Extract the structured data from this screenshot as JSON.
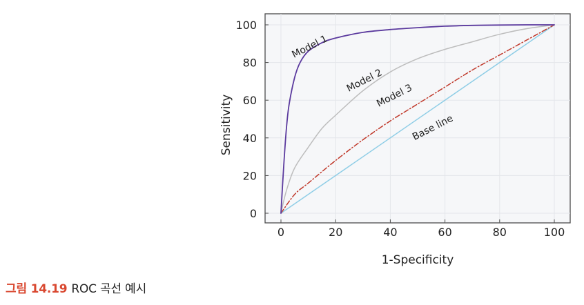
{
  "caption": {
    "figure_number": "그림 14.19",
    "text": "ROC 곡선 예시"
  },
  "chart_data": {
    "type": "line",
    "title": "",
    "xlabel": "1-Specificity",
    "ylabel": "Sensitivity",
    "xlim": [
      0,
      100
    ],
    "ylim": [
      0,
      100
    ],
    "x_ticks": [
      0,
      20,
      40,
      60,
      80,
      100
    ],
    "y_ticks": [
      0,
      20,
      40,
      60,
      80,
      100
    ],
    "grid": true,
    "series": [
      {
        "name": "Model 1",
        "color": "#5b3a9e",
        "style": "solid",
        "x": [
          0,
          1,
          2,
          3,
          5,
          7,
          10,
          15,
          20,
          30,
          40,
          50,
          60,
          70,
          80,
          90,
          100
        ],
        "y": [
          0,
          25,
          45,
          58,
          72,
          80,
          86,
          90.5,
          93,
          96,
          97.5,
          98.5,
          99.3,
          99.7,
          99.9,
          100,
          100
        ]
      },
      {
        "name": "Model 2",
        "color": "#bdbdbd",
        "style": "solid",
        "x": [
          0,
          2,
          5,
          10,
          15,
          20,
          30,
          40,
          50,
          60,
          70,
          80,
          90,
          100
        ],
        "y": [
          0,
          12,
          24,
          35,
          45,
          52,
          65,
          75,
          82,
          87,
          91,
          95,
          98,
          100
        ]
      },
      {
        "name": "Model 3",
        "color": "#c0392b",
        "style": "dashdot",
        "x": [
          0,
          5,
          10,
          20,
          30,
          40,
          50,
          60,
          70,
          80,
          90,
          100
        ],
        "y": [
          0,
          10,
          16,
          28,
          39,
          49,
          58,
          67,
          76,
          84,
          92,
          100
        ]
      },
      {
        "name": "Base line",
        "color": "#8ecde6",
        "style": "solid",
        "x": [
          0,
          100
        ],
        "y": [
          0,
          100
        ]
      }
    ],
    "annotations": [
      {
        "text": "Model 1",
        "series": "Model 1",
        "x": 11,
        "y": 87
      },
      {
        "text": "Model 2",
        "series": "Model 2",
        "x": 31,
        "y": 69
      },
      {
        "text": "Model 3",
        "series": "Model 3",
        "x": 42,
        "y": 61
      },
      {
        "text": "Base line",
        "series": "Base line",
        "x": 56,
        "y": 44
      }
    ]
  }
}
